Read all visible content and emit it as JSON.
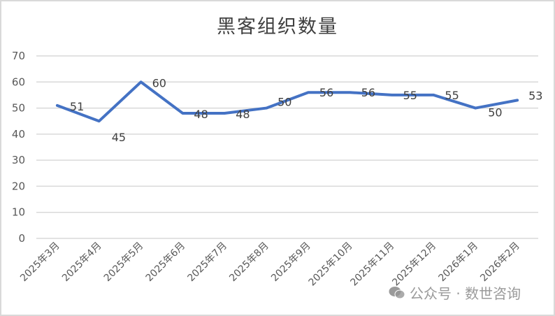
{
  "chart_data": {
    "type": "line",
    "title": "黑客组织数量",
    "xlabel": "",
    "ylabel": "",
    "categories": [
      "2025年3月",
      "2025年4月",
      "2025年5月",
      "2025年6月",
      "2025年7月",
      "2025年8月",
      "2025年9月",
      "2025年10月",
      "2025年11月",
      "2025年12月",
      "2026年1月",
      "2026年2月"
    ],
    "series": [
      {
        "name": "黑客组织数量",
        "values": [
          51,
          45,
          60,
          48,
          48,
          50,
          56,
          56,
          55,
          55,
          50,
          53
        ],
        "color": "#4472c4"
      }
    ],
    "ylim": [
      0,
      70
    ],
    "yticks": [
      0,
      10,
      20,
      30,
      40,
      50,
      60,
      70
    ],
    "grid": true,
    "legend": "none",
    "data_labels": true
  },
  "watermark": {
    "text": "公众号 · 数世咨询",
    "icon": "wechat-icon"
  }
}
